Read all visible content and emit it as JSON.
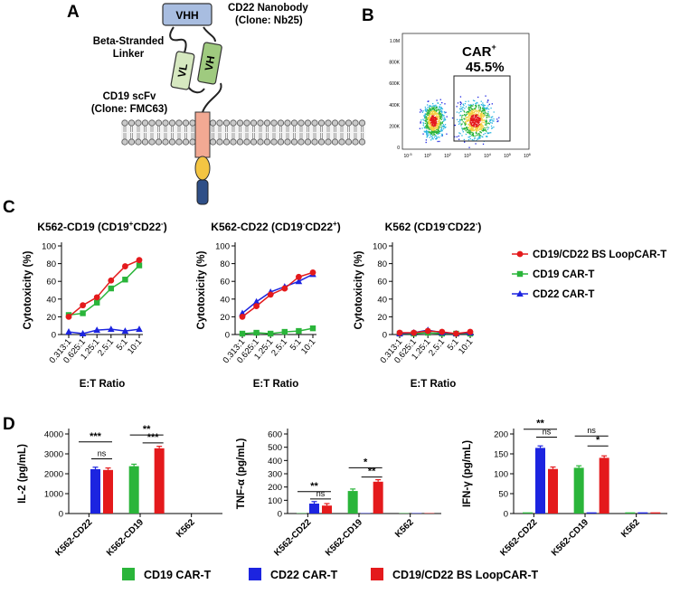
{
  "panels": {
    "a": "A",
    "b": "B",
    "c": "C",
    "d": "D"
  },
  "diagram": {
    "vhh": "VHH",
    "vl": "VL",
    "vh": "VH",
    "nanobody_l1": "CD22 Nanobody",
    "nanobody_l2": "(Clone: Nb25)",
    "linker_l1": "Beta-Stranded",
    "linker_l2": "Linker",
    "scfv_l1": "CD19 scFv",
    "scfv_l2": "(Clone: FMC63)",
    "colors": {
      "vhh": "#a8bde0",
      "vl": "#d6e8c0",
      "vh": "#9fca7f",
      "hinge": "#f2a993",
      "tm": "#f4c542",
      "ic": "#2f4f87"
    }
  },
  "flow": {
    "gate_label": "CAR",
    "gate_sup": "+",
    "gate_pct": "45.5%",
    "y_ticks": [
      "1.0M",
      "800K",
      "600K",
      "400K",
      "200K",
      "0"
    ],
    "x_ticks": [
      "10",
      "10",
      "10",
      "10",
      "10",
      "10",
      "10"
    ],
    "x_ticks_exp": [
      "-5",
      "0",
      "2",
      "3",
      "4",
      "5",
      "6"
    ]
  },
  "colors": {
    "bs": "#e41a1c",
    "cd19": "#2ab53a",
    "cd22": "#1c24e0"
  },
  "legend_c": [
    {
      "key": "bs",
      "label": "CD19/CD22 BS LoopCAR-T"
    },
    {
      "key": "cd19",
      "label": "CD19 CAR-T"
    },
    {
      "key": "cd22",
      "label": "CD22 CAR-T"
    }
  ],
  "legend_d": [
    {
      "key": "cd19",
      "label": "CD19 CAR-T"
    },
    {
      "key": "cd22",
      "label": "CD22 CAR-T"
    },
    {
      "key": "bs",
      "label": "CD19/CD22 BS LoopCAR-T"
    }
  ],
  "chart_data": [
    {
      "type": "line",
      "title_parts": [
        [
          "K562-CD19 (CD19",
          "n"
        ],
        [
          "+",
          "sup"
        ],
        [
          "CD22",
          "n"
        ],
        [
          "-",
          "sup"
        ],
        [
          ")",
          "n"
        ]
      ],
      "xlabel": "E:T Ratio",
      "ylabel": "Cytotoxicity (%)",
      "ylim": [
        0,
        100
      ],
      "y_ticks": [
        0,
        20,
        40,
        60,
        80,
        100
      ],
      "categories": [
        "0.313:1",
        "0.625:1",
        "1.25:1",
        "2.5:1",
        "5:1",
        "10:1"
      ],
      "series": [
        {
          "key": "bs",
          "name": "CD19/CD22 BS LoopCAR-T",
          "values": [
            20,
            33,
            42,
            61,
            77,
            84
          ]
        },
        {
          "key": "cd19",
          "name": "CD19 CAR-T",
          "values": [
            22,
            24,
            36,
            52,
            62,
            78
          ]
        },
        {
          "key": "cd22",
          "name": "CD22 CAR-T",
          "values": [
            3,
            1,
            5,
            6,
            4,
            6
          ]
        }
      ]
    },
    {
      "type": "line",
      "title_parts": [
        [
          "K562-CD22 (CD19",
          "n"
        ],
        [
          "-",
          "sup"
        ],
        [
          "CD22",
          "n"
        ],
        [
          "+",
          "sup"
        ],
        [
          ")",
          "n"
        ]
      ],
      "xlabel": "E:T Ratio",
      "ylabel": "Cytotoxicity (%)",
      "ylim": [
        0,
        100
      ],
      "y_ticks": [
        0,
        20,
        40,
        60,
        80,
        100
      ],
      "categories": [
        "0.313:1",
        "0.625:1",
        "1.25:1",
        "2.5:1",
        "5:1",
        "10:1"
      ],
      "series": [
        {
          "key": "bs",
          "name": "CD19/CD22 BS LoopCAR-T",
          "values": [
            20,
            32,
            45,
            52,
            65,
            70
          ]
        },
        {
          "key": "cd19",
          "name": "CD19 CAR-T",
          "values": [
            1,
            2,
            1,
            3,
            4,
            7
          ]
        },
        {
          "key": "cd22",
          "name": "CD22 CAR-T",
          "values": [
            24,
            37,
            48,
            54,
            60,
            68
          ]
        }
      ]
    },
    {
      "type": "line",
      "title_parts": [
        [
          "K562 (CD19",
          "n"
        ],
        [
          "-",
          "sup"
        ],
        [
          "CD22",
          "n"
        ],
        [
          "-",
          "sup"
        ],
        [
          ")",
          "n"
        ]
      ],
      "xlabel": "E:T Ratio",
      "ylabel": "Cytotoxicity (%)",
      "ylim": [
        0,
        100
      ],
      "y_ticks": [
        0,
        20,
        40,
        60,
        80,
        100
      ],
      "categories": [
        "0.313:1",
        "0.625:1",
        "1.25:1",
        "2.5:1",
        "5:1",
        "10:1"
      ],
      "series": [
        {
          "key": "bs",
          "name": "CD19/CD22 BS LoopCAR-T",
          "values": [
            2,
            2,
            4,
            3,
            1,
            3
          ]
        },
        {
          "key": "cd19",
          "name": "CD19 CAR-T",
          "values": [
            1,
            1,
            2,
            1,
            1,
            1
          ]
        },
        {
          "key": "cd22",
          "name": "CD22 CAR-T",
          "values": [
            1,
            2,
            5,
            2,
            1,
            2
          ]
        }
      ]
    },
    {
      "type": "bar",
      "ylabel": "IL-2 (pg/mL)",
      "ylim": [
        0,
        4000
      ],
      "y_ticks": [
        0,
        1000,
        2000,
        3000,
        4000
      ],
      "categories": [
        "K562-CD22",
        "K562-CD19",
        "K562"
      ],
      "series": [
        {
          "key": "cd19",
          "name": "CD19 CAR-T",
          "values": [
            0,
            2380,
            0
          ]
        },
        {
          "key": "cd22",
          "name": "CD22 CAR-T",
          "values": [
            2230,
            0,
            0
          ]
        },
        {
          "key": "bs",
          "name": "CD19/CD22 BS LoopCAR-T",
          "values": [
            2190,
            3280,
            0
          ]
        }
      ],
      "sig": [
        {
          "cat": 0,
          "from": 0,
          "to": 2,
          "y": 3600,
          "label": "***"
        },
        {
          "cat": 0,
          "from": 1,
          "to": 2,
          "y": 2750,
          "label": "ns"
        },
        {
          "cat": 1,
          "from": 0,
          "to": 2,
          "y": 3950,
          "label": "**"
        },
        {
          "cat": 1,
          "from": 1,
          "to": 2,
          "y": 3550,
          "label": "***"
        }
      ]
    },
    {
      "type": "bar",
      "ylabel": "TNF-α (pg/mL)",
      "ylim": [
        0,
        600
      ],
      "y_ticks": [
        0,
        100,
        200,
        300,
        400,
        500,
        600
      ],
      "categories": [
        "K562-CD22",
        "K562-CD19",
        "K562"
      ],
      "series": [
        {
          "key": "cd19",
          "name": "CD19 CAR-T",
          "values": [
            3,
            170,
            3
          ]
        },
        {
          "key": "cd22",
          "name": "CD22 CAR-T",
          "values": [
            75,
            3,
            3
          ]
        },
        {
          "key": "bs",
          "name": "CD19/CD22 BS LoopCAR-T",
          "values": [
            60,
            240,
            3
          ]
        }
      ],
      "sig": [
        {
          "cat": 0,
          "from": 0,
          "to": 2,
          "y": 165,
          "label": "**"
        },
        {
          "cat": 0,
          "from": 1,
          "to": 2,
          "y": 110,
          "label": "ns"
        },
        {
          "cat": 1,
          "from": 0,
          "to": 2,
          "y": 345,
          "label": "*"
        },
        {
          "cat": 1,
          "from": 1,
          "to": 2,
          "y": 275,
          "label": "**"
        }
      ]
    },
    {
      "type": "bar",
      "ylabel": "IFN-γ (pg/mL)",
      "ylim": [
        0,
        200
      ],
      "y_ticks": [
        0,
        50,
        100,
        150,
        200
      ],
      "categories": [
        "K562-CD22",
        "K562-CD19",
        "K562"
      ],
      "series": [
        {
          "key": "cd19",
          "name": "CD19 CAR-T",
          "values": [
            3,
            115,
            3
          ]
        },
        {
          "key": "cd22",
          "name": "CD22 CAR-T",
          "values": [
            165,
            3,
            3
          ]
        },
        {
          "key": "bs",
          "name": "CD19/CD22 BS LoopCAR-T",
          "values": [
            112,
            140,
            3
          ]
        }
      ],
      "sig": [
        {
          "cat": 0,
          "from": 0,
          "to": 2,
          "y": 212,
          "label": "**"
        },
        {
          "cat": 0,
          "from": 1,
          "to": 2,
          "y": 192,
          "label": "ns"
        },
        {
          "cat": 1,
          "from": 0,
          "to": 2,
          "y": 195,
          "label": "ns"
        },
        {
          "cat": 1,
          "from": 1,
          "to": 2,
          "y": 170,
          "label": "*"
        }
      ]
    }
  ]
}
